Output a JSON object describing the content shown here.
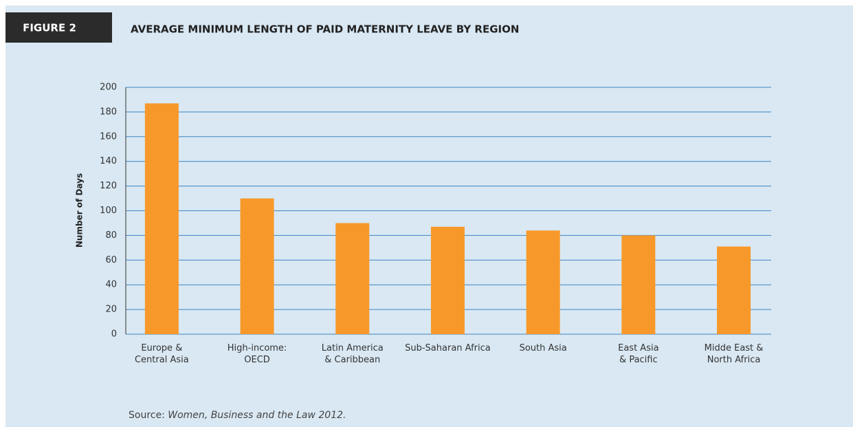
{
  "chart_data": {
    "type": "bar",
    "figure_label": "FIGURE 2",
    "title": "AVERAGE MINIMUM LENGTH OF PAID MATERNITY LEAVE BY REGION",
    "ylabel": "Number of Days",
    "categories": [
      [
        "Europe &",
        "Central Asia"
      ],
      [
        "High-income:",
        "OECD"
      ],
      [
        "Latin America",
        "& Caribbean"
      ],
      [
        "Sub-Saharan Africa"
      ],
      [
        "South Asia"
      ],
      [
        "East Asia",
        "& Pacific"
      ],
      [
        "Midde East &",
        "North Africa"
      ]
    ],
    "values": [
      187,
      110,
      90,
      87,
      84,
      80,
      71
    ],
    "color": "#f7992a",
    "ylim": [
      0,
      200
    ],
    "yticks": [
      0,
      20,
      40,
      60,
      80,
      100,
      120,
      140,
      160,
      180,
      200
    ],
    "grid": true,
    "source_label": "Source:",
    "source": "Women, Business and the Law 2012."
  }
}
